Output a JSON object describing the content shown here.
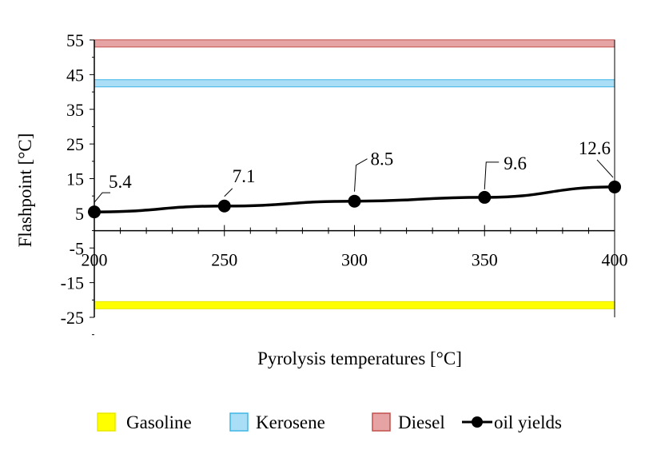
{
  "chart_data": {
    "type": "line",
    "title": "",
    "xlabel": "Pyrolysis  temperatures  [°C]",
    "ylabel": "Flashpoint  [°C]",
    "xlim": [
      200,
      400
    ],
    "ylim": [
      -25,
      55
    ],
    "x_ticks": [
      "200",
      "250",
      "300",
      "350",
      "400"
    ],
    "y_ticks": [
      "55",
      "45",
      "35",
      "25",
      "15",
      "5",
      "-5",
      "-15",
      "-25"
    ],
    "x_minor_step": 10,
    "grid": false,
    "series": [
      {
        "name": "oil yields",
        "color": "#000000",
        "x": [
          200,
          250,
          300,
          350,
          400
        ],
        "y": [
          5.4,
          7.1,
          8.5,
          9.6,
          12.6
        ],
        "labels": [
          "5.4",
          "7.1",
          "8.5",
          "9.6",
          "12.6"
        ]
      }
    ],
    "reference_bands": [
      {
        "name": "Gasoline",
        "y": -21.5,
        "fill": "#ffff00",
        "stroke": "#e8e800"
      },
      {
        "name": "Kerosene",
        "y": 42.5,
        "fill": "#a9def6",
        "stroke": "#3fb6e6"
      },
      {
        "name": "Diesel",
        "y": 54,
        "fill": "#e6a3a3",
        "stroke": "#c0504d"
      }
    ],
    "legend": {
      "placement": "bottom",
      "items": [
        "Gasoline",
        "Kerosene",
        "Diesel",
        "oil yields"
      ]
    }
  }
}
